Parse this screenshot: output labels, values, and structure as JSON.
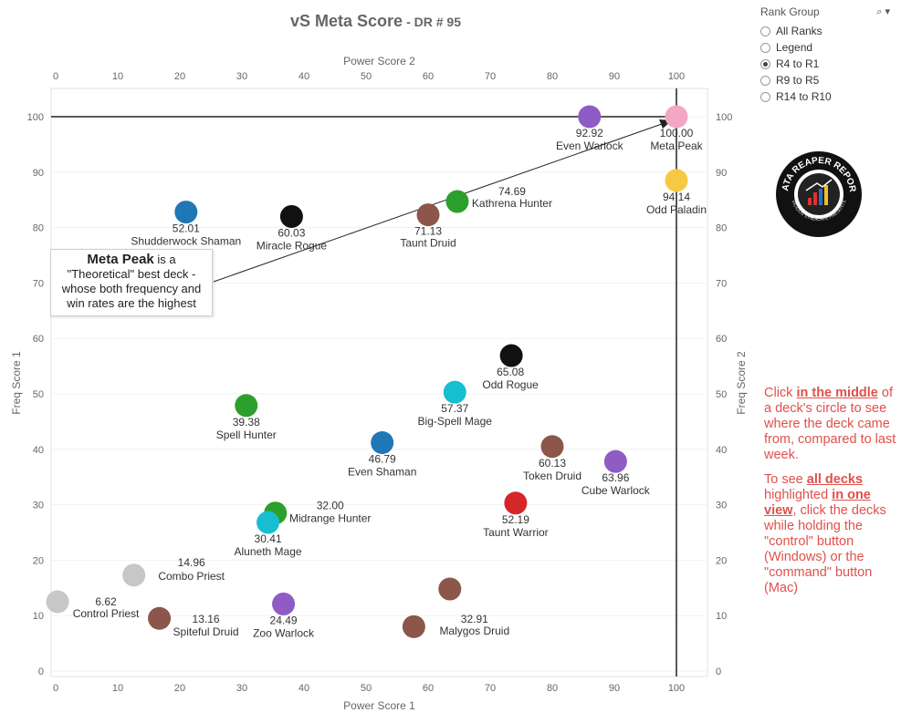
{
  "title": "vS Meta Score",
  "title_sub": "DR # 95",
  "rank_group": {
    "title": "Rank Group",
    "search_icon": "search-icon",
    "options": [
      "All Ranks",
      "Legend",
      "R4 to R1",
      "R9 to R5",
      "R14 to R10"
    ],
    "selected": "R4 to R1"
  },
  "annotation": {
    "bold": "Meta Peak",
    "line1_rest": " is a",
    "line2": "\"Theoretical\" best deck -",
    "line3": "whose both frequency and",
    "line4": "win rates are the highest"
  },
  "logo": {
    "text_top": "DATA REAPER REPORT",
    "text_bottom": "VICIOUS SYNDICATE PRESENTS"
  },
  "instructions": {
    "p1_pre": "Click ",
    "p1_bold": "in the middle",
    "p1_post": " of a deck's circle to see where the deck came from, compared to last week.",
    "p2_pre": "To see ",
    "p2_bold1": "all decks",
    "p2_mid1": " highlighted ",
    "p2_bold2": "in one view",
    "p2_post": ", click the decks while holding the \"control\" button (Windows) or the \"command\" button (Mac)"
  },
  "chart_data": {
    "type": "scatter",
    "title": "vS Meta Score - DR # 95",
    "xlabel": "Power Score 1",
    "x2label": "Power Score 2",
    "ylabel": "Freq Score 1",
    "y2label": "Freq Score 2",
    "xlim": [
      0,
      105
    ],
    "ylim": [
      -1,
      105
    ],
    "xticks": [
      0,
      10,
      20,
      30,
      40,
      50,
      60,
      70,
      80,
      90,
      100
    ],
    "yticks": [
      0,
      10,
      20,
      30,
      40,
      50,
      60,
      70,
      80,
      90,
      100
    ],
    "reference_lines": {
      "x": 100,
      "y": 100
    },
    "points": [
      {
        "name": "Meta Peak",
        "score": "100.00",
        "x": 100,
        "y": 100,
        "color": "#f4a7c3"
      },
      {
        "name": "Even Warlock",
        "score": "92.92",
        "x": 86,
        "y": 100,
        "color": "#8e5cc4"
      },
      {
        "name": "Odd Paladin",
        "score": "94.14",
        "x": 100,
        "y": 88.5,
        "color": "#f6c945"
      },
      {
        "name": "Kathrena Hunter",
        "score": "74.69",
        "x": 64.7,
        "y": 84.7,
        "color": "#2ca02c"
      },
      {
        "name": "Taunt Druid",
        "score": "71.13",
        "x": 60,
        "y": 82.3,
        "color": "#8c564b"
      },
      {
        "name": "Miracle Rogue",
        "score": "60.03",
        "x": 38,
        "y": 82,
        "color": "#111111"
      },
      {
        "name": "Shudderwock Shaman",
        "score": "52.01",
        "x": 21,
        "y": 82.8,
        "color": "#1f77b4"
      },
      {
        "name": "Odd Rogue",
        "score": "65.08",
        "x": 73.4,
        "y": 56.9,
        "color": "#111111"
      },
      {
        "name": "Big-Spell Mage",
        "score": "57.37",
        "x": 64.3,
        "y": 50.3,
        "color": "#17becf"
      },
      {
        "name": "Spell Hunter",
        "score": "39.38",
        "x": 30.7,
        "y": 47.9,
        "color": "#2ca02c"
      },
      {
        "name": "Even Shaman",
        "score": "46.79",
        "x": 52.6,
        "y": 41.2,
        "color": "#1f77b4"
      },
      {
        "name": "Token Druid",
        "score": "60.13",
        "x": 80,
        "y": 40.5,
        "color": "#8c564b"
      },
      {
        "name": "Cube Warlock",
        "score": "63.96",
        "x": 90.2,
        "y": 37.8,
        "color": "#8e5cc4"
      },
      {
        "name": "Taunt Warrior",
        "score": "52.19",
        "x": 74.1,
        "y": 30.3,
        "color": "#d62728"
      },
      {
        "name": "Midrange Hunter",
        "score": "32.00",
        "x": 35.4,
        "y": 28.5,
        "color": "#2ca02c"
      },
      {
        "name": "Aluneth Mage",
        "score": "30.41",
        "x": 34.2,
        "y": 26.8,
        "color": "#17becf"
      },
      {
        "name": "Combo Priest",
        "score": "14.96",
        "x": 12.6,
        "y": 17.3,
        "color": "#c7c7c7"
      },
      {
        "name": "Control Priest",
        "score": "6.62",
        "x": 0.3,
        "y": 12.5,
        "color": "#c7c7c7"
      },
      {
        "name": "Spiteful Druid",
        "score": "13.16",
        "x": 16.7,
        "y": 9.5,
        "color": "#8c564b"
      },
      {
        "name": "Zoo Warlock",
        "score": "24.49",
        "x": 36.7,
        "y": 12.1,
        "color": "#8e5cc4"
      },
      {
        "name": "Malygos Druid",
        "score": "32.91",
        "x": 63.5,
        "y": 14.8,
        "color": "#8c564b"
      },
      {
        "name": "Malygos Druid",
        "score": "",
        "x": 57.7,
        "y": 8,
        "color": "#8c564b"
      }
    ]
  }
}
